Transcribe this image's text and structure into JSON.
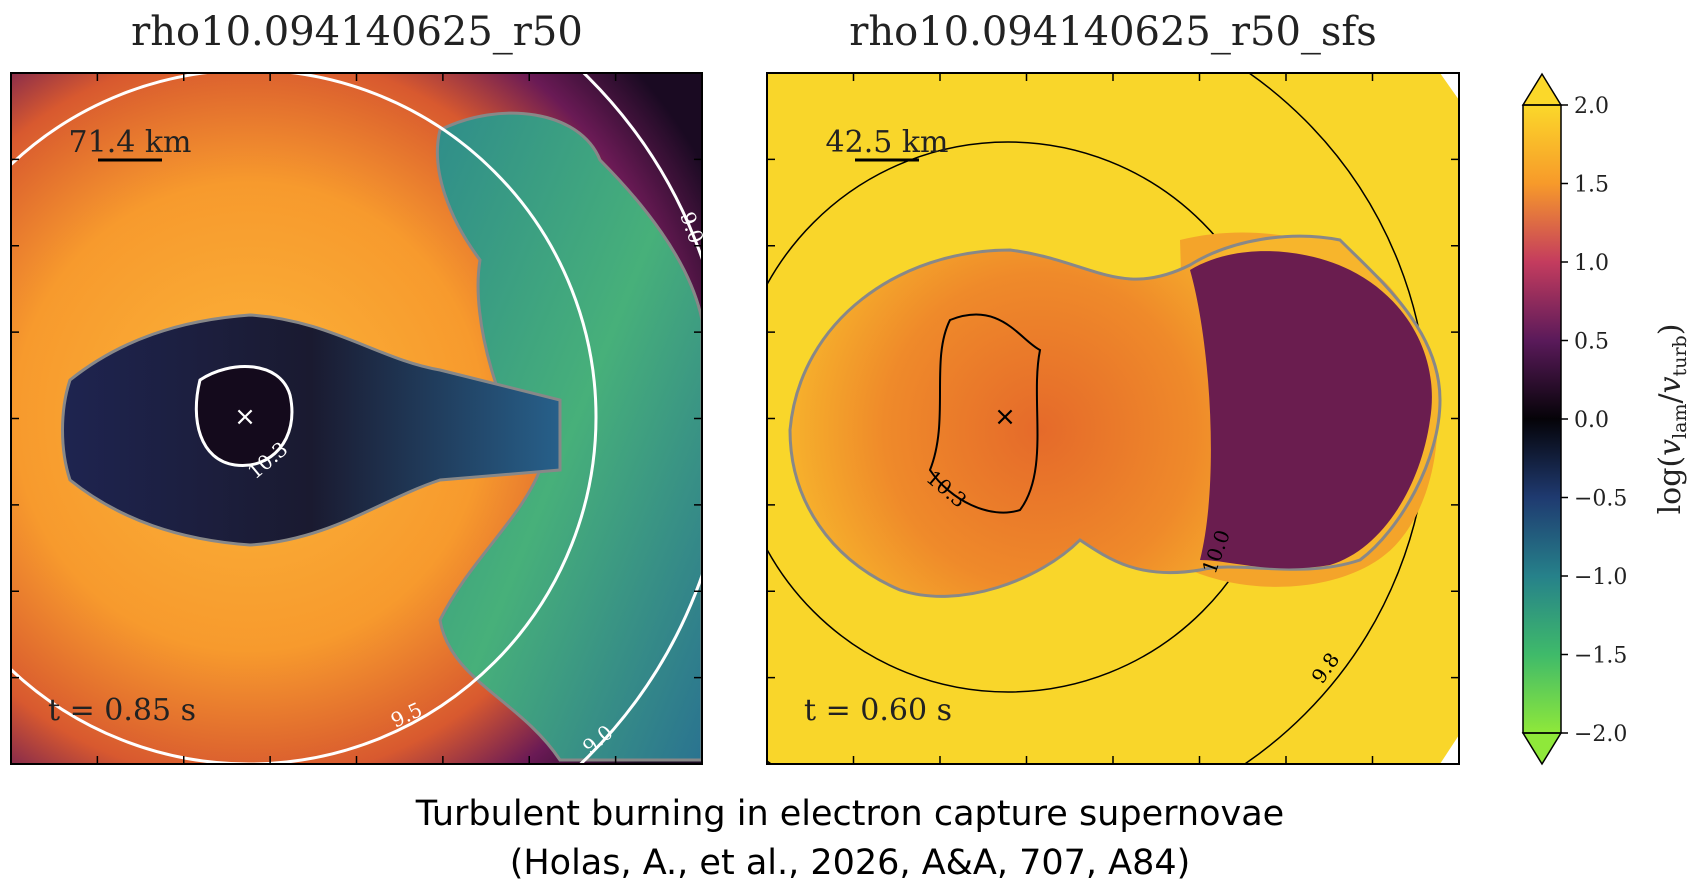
{
  "panels": [
    {
      "title": "rho10.094140625_r50",
      "scale_label": "71.4 km",
      "time_label": "t = 0.85 s",
      "contour_labels": [
        "10.3",
        "9.5",
        "9.0",
        "9.0"
      ]
    },
    {
      "title": "rho10.094140625_r50_sfs",
      "scale_label": "42.5 km",
      "time_label": "t = 0.60 s",
      "contour_labels": [
        "10.3",
        "10.0",
        "9.8"
      ]
    }
  ],
  "colorbar": {
    "label": {
      "prefix": "log(",
      "v1": "v",
      "sub1": "lam",
      "slash": "/",
      "v2": "v",
      "sub2": "turb",
      "suffix": ")"
    },
    "ticks": [
      {
        "value": 2.0,
        "label": "2.0"
      },
      {
        "value": 1.5,
        "label": "1.5"
      },
      {
        "value": 1.0,
        "label": "1.0"
      },
      {
        "value": 0.5,
        "label": "0.5"
      },
      {
        "value": 0.0,
        "label": "0.0"
      },
      {
        "value": -0.5,
        "label": "−0.5"
      },
      {
        "value": -1.0,
        "label": "−1.0"
      },
      {
        "value": -1.5,
        "label": "−1.5"
      },
      {
        "value": -2.0,
        "label": "−2.0"
      }
    ]
  },
  "caption": [
    "Turbulent burning in electron capture supernovae",
    "(Holas, A., et al., 2026,  A&A, 707, A84)"
  ]
}
